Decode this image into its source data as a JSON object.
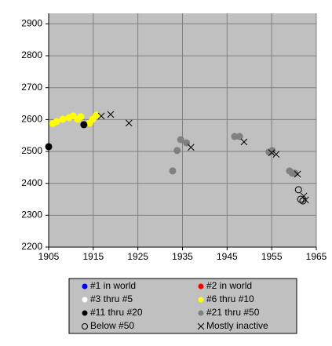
{
  "chart_data": {
    "type": "scatter",
    "xlim": [
      1905,
      1965
    ],
    "xticks": [
      1905,
      1915,
      1925,
      1935,
      1945,
      1955,
      1965
    ],
    "ylim": [
      2200,
      2933
    ],
    "yticks": [
      2200,
      2300,
      2400,
      2500,
      2600,
      2700,
      2800,
      2900
    ],
    "grid": true,
    "legend": "bottom",
    "series": [
      {
        "name": "#1 in world",
        "color": "#0000ff",
        "marker": "circle",
        "x": [],
        "values": []
      },
      {
        "name": "#2 in world",
        "color": "#ff0000",
        "marker": "circle",
        "x": [],
        "values": []
      },
      {
        "name": "#3 thru #5",
        "color": "#ffffff",
        "marker": "circle",
        "x": [],
        "values": []
      },
      {
        "name": "#6 thru #10",
        "color": "#ffff00",
        "marker": "circle",
        "x": [
          1905.9,
          1906.8,
          1908.2,
          1909.6,
          1910.5,
          1911.5,
          1912.2,
          1914.2,
          1914.9,
          1915.7
        ],
        "values": [
          2587,
          2594,
          2601,
          2606,
          2611,
          2601,
          2609,
          2589,
          2601,
          2614
        ]
      },
      {
        "name": "#11 thru #20",
        "color": "#000000",
        "marker": "circle",
        "x": [
          1905,
          1912.9
        ],
        "values": [
          2515,
          2584
        ]
      },
      {
        "name": "#21 thru #50",
        "color": "#808080",
        "marker": "circle",
        "x": [
          1932.8,
          1933.8,
          1934.6,
          1935.9,
          1946.7,
          1947.8,
          1954.4,
          1955.1,
          1959,
          1959.6,
          1960.2
        ],
        "values": [
          2439,
          2503,
          2537,
          2527,
          2547,
          2547,
          2498,
          2503,
          2439,
          2432,
          2432
        ]
      },
      {
        "name": "Below #50",
        "color": "#000000",
        "marker": "open-circle",
        "x": [
          1961,
          1961.5,
          1962
        ],
        "values": [
          2380,
          2350,
          2345
        ]
      },
      {
        "name": "Mostly inactive",
        "color": "#000000",
        "marker": "x",
        "x": [
          1916.8,
          1918.9,
          1923,
          1936.9,
          1948.8,
          1955,
          1956,
          1960.8,
          1962.2,
          1962.6
        ],
        "values": [
          2611,
          2616,
          2589,
          2513,
          2530,
          2496,
          2491,
          2429,
          2360,
          2348
        ]
      }
    ]
  }
}
